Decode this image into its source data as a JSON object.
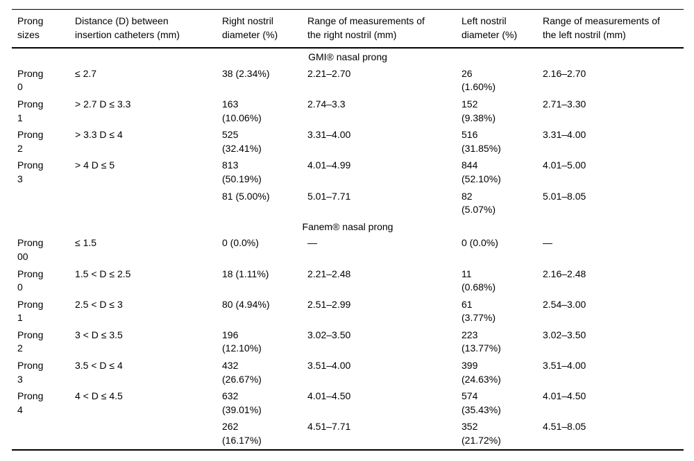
{
  "table": {
    "columns": [
      {
        "label": "Prong\nsizes"
      },
      {
        "label": "Distance (D) between\ninsertion catheters (mm)"
      },
      {
        "label": "Right nostril\ndiameter (%)"
      },
      {
        "label": "Range of measurements of\nthe right nostril (mm)"
      },
      {
        "label": "Left nostril\ndiameter (%)"
      },
      {
        "label": "Range of measurements of\nthe left nostril (mm)"
      }
    ],
    "sections": [
      {
        "title": "GMI® nasal prong",
        "rows": [
          [
            "Prong\n0",
            "≤ 2.7",
            "38 (2.34%)",
            "2.21–2.70",
            "26\n(1.60%)",
            "2.16–2.70"
          ],
          [
            "Prong\n1",
            "> 2.7 D ≤ 3.3",
            "163\n(10.06%)",
            "2.74–3.3",
            "152\n(9.38%)",
            "2.71–3.30"
          ],
          [
            "Prong\n2",
            "> 3.3 D ≤ 4",
            "525\n(32.41%)",
            "3.31–4.00",
            "516\n(31.85%)",
            "3.31–4.00"
          ],
          [
            "Prong\n3",
            "> 4 D ≤ 5",
            "813\n(50.19%)",
            "4.01–4.99",
            "844\n(52.10%)",
            "4.01–5.00"
          ],
          [
            "",
            "",
            "81 (5.00%)",
            "5.01–7.71",
            "82\n(5.07%)",
            "5.01–8.05"
          ]
        ]
      },
      {
        "title": "Fanem® nasal prong",
        "rows": [
          [
            "Prong\n00",
            "≤ 1.5",
            "0 (0.0%)",
            "—",
            "0 (0.0%)",
            "—"
          ],
          [
            "Prong\n0",
            "1.5 < D ≤ 2.5",
            "18 (1.11%)",
            "2.21–2.48",
            "11\n(0.68%)",
            "2.16–2.48"
          ],
          [
            "Prong\n1",
            "2.5 < D ≤ 3",
            "80 (4.94%)",
            "2.51–2.99",
            "61\n(3.77%)",
            "2.54–3.00"
          ],
          [
            "Prong\n2",
            "3 < D ≤ 3.5",
            "196\n(12.10%)",
            "3.02–3.50",
            "223\n(13.77%)",
            "3.02–3.50"
          ],
          [
            "Prong\n3",
            "3.5 < D ≤ 4",
            "432\n(26.67%)",
            "3.51–4.00",
            "399\n(24.63%)",
            "3.51–4.00"
          ],
          [
            "Prong\n4",
            "4 < D ≤ 4.5",
            "632\n(39.01%)",
            "4.01–4.50",
            "574\n(35.43%)",
            "4.01–4.50"
          ],
          [
            "",
            "",
            "262\n(16.17%)",
            "4.51–7.71",
            "352\n(21.72%)",
            "4.51–8.05"
          ]
        ]
      }
    ]
  }
}
